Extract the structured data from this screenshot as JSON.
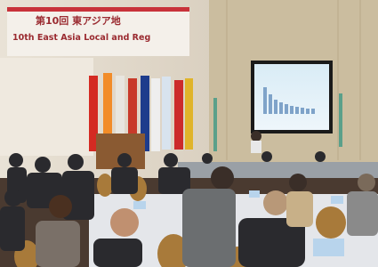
{
  "banner": {
    "line1": "第10回 東アジア地",
    "line2": "10th East Asia Local and Reg"
  }
}
